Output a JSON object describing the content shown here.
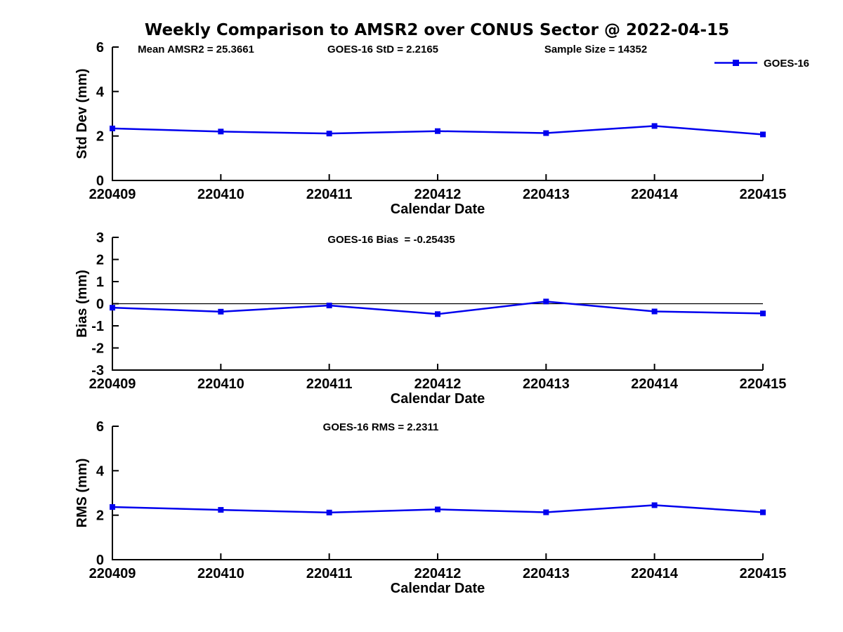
{
  "title": "Weekly Comparison to AMSR2 over CONUS Sector @ 2022-04-15",
  "legend": {
    "label": "GOES-16",
    "position": "top-right",
    "color": "#0000EE"
  },
  "colors": {
    "line": "#0000EE",
    "axis": "#000000",
    "text": "#000000",
    "background": "#ffffff"
  },
  "chart_data": [
    {
      "type": "line",
      "id": "std-dev",
      "annotations": [
        "Mean AMSR2 = 25.3661",
        "GOES-16 StD = 2.2165",
        "Sample Size = 14352"
      ],
      "ylabel": "Std Dev (mm)",
      "xlabel": "Calendar Date",
      "ylim": [
        0,
        6
      ],
      "yticks": [
        0,
        2,
        4,
        6
      ],
      "categories": [
        "220409",
        "220410",
        "220411",
        "220412",
        "220413",
        "220414",
        "220415"
      ],
      "series": [
        {
          "name": "GOES-16",
          "values": [
            2.34,
            2.2,
            2.11,
            2.22,
            2.13,
            2.45,
            2.07
          ]
        }
      ],
      "zero_line": false,
      "grid": false,
      "legend_visible": true
    },
    {
      "type": "line",
      "id": "bias",
      "annotations": [
        "GOES-16 Bias  = -0.25435"
      ],
      "ylabel": "Bias (mm)",
      "xlabel": "Calendar Date",
      "ylim": [
        -3,
        3
      ],
      "yticks": [
        -3,
        -2,
        -1,
        0,
        1,
        2,
        3
      ],
      "categories": [
        "220409",
        "220410",
        "220411",
        "220412",
        "220413",
        "220414",
        "220415"
      ],
      "series": [
        {
          "name": "GOES-16",
          "values": [
            -0.18,
            -0.36,
            -0.08,
            -0.47,
            0.1,
            -0.35,
            -0.44
          ]
        }
      ],
      "zero_line": true,
      "grid": false,
      "legend_visible": false
    },
    {
      "type": "line",
      "id": "rms",
      "annotations": [
        "GOES-16 RMS = 2.2311"
      ],
      "ylabel": "RMS (mm)",
      "xlabel": "Calendar Date",
      "ylim": [
        0,
        6
      ],
      "yticks": [
        0,
        2,
        4,
        6
      ],
      "categories": [
        "220409",
        "220410",
        "220411",
        "220412",
        "220413",
        "220414",
        "220415"
      ],
      "series": [
        {
          "name": "GOES-16",
          "values": [
            2.37,
            2.24,
            2.12,
            2.26,
            2.13,
            2.45,
            2.13
          ]
        }
      ],
      "zero_line": false,
      "grid": false,
      "legend_visible": false
    }
  ]
}
